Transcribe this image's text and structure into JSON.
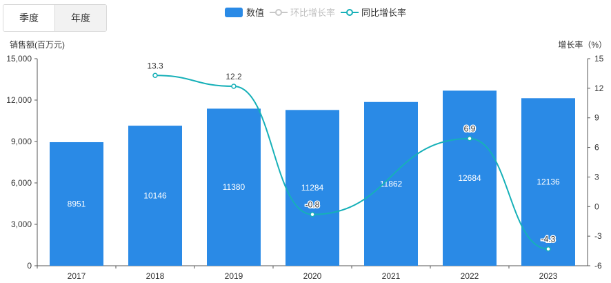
{
  "tabs": [
    {
      "label": "季度",
      "active": false
    },
    {
      "label": "年度",
      "active": true
    }
  ],
  "legend": {
    "bar_label": "数值",
    "ring_label": "环比增长率",
    "yoy_label": "同比增长率"
  },
  "colors": {
    "bar": "#2a8ae6",
    "yoy_line": "#16b0b8",
    "ring_line": "#c8c8c8",
    "axis_text": "#333333"
  },
  "chart_data": {
    "type": "bar",
    "categories": [
      "2017",
      "2018",
      "2019",
      "2020",
      "2021",
      "2022",
      "2023"
    ],
    "series": [
      {
        "name": "数值",
        "type": "bar",
        "axis": "left",
        "values": [
          8951,
          10146,
          11380,
          11284,
          11862,
          12684,
          12136
        ]
      },
      {
        "name": "同比增长率",
        "type": "line",
        "axis": "right",
        "values": [
          null,
          13.3,
          12.2,
          -0.8,
          null,
          6.9,
          -4.3
        ]
      }
    ],
    "ylabel": "销售额(百万元)",
    "ylabel_right": "增长率（%）",
    "ylim": [
      0,
      15000
    ],
    "ylim_right": [
      -6,
      15
    ],
    "yticks": [
      "0",
      "3,000",
      "6,000",
      "9,000",
      "12,000",
      "15,000"
    ],
    "yticks_right": [
      "-6",
      "-3",
      "0",
      "3",
      "6",
      "9",
      "12",
      "15"
    ],
    "grid": false,
    "legend_position": "top-center"
  }
}
